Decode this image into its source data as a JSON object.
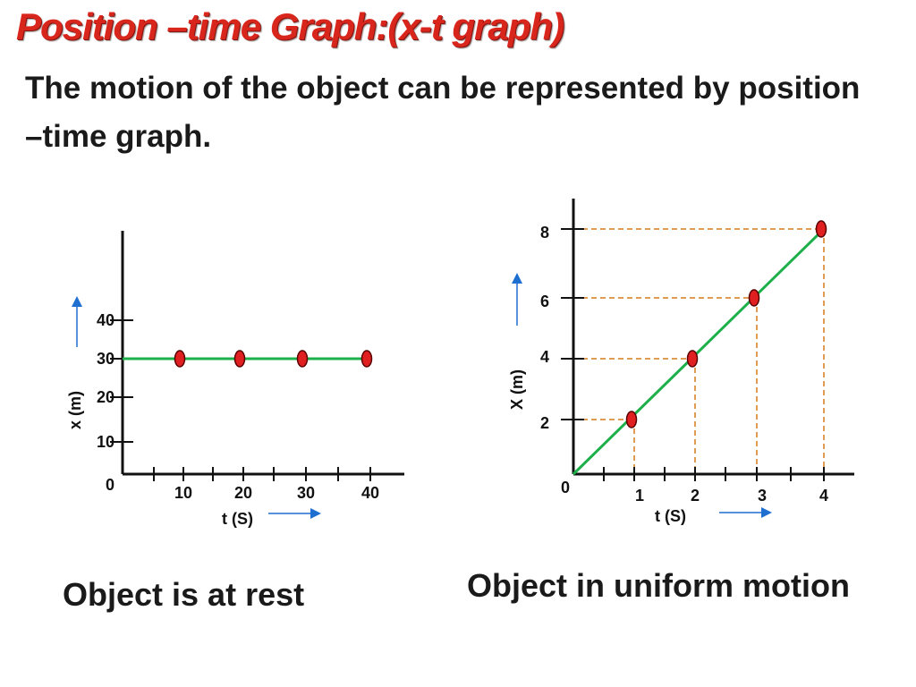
{
  "slide": {
    "title": "Position –time Graph:(x-t graph)",
    "intro": "The motion of the object can be represented by position –time graph."
  },
  "colors": {
    "title": "#d9261c",
    "line": "#1db04a",
    "point_fill": "#e02020",
    "point_stroke": "#5a0000",
    "axis_arrow": "#1f6fd1",
    "guide": "#d97a1a",
    "axis": "#111111"
  },
  "chart_data": [
    {
      "type": "line",
      "title": "",
      "caption": "Object is at rest",
      "xlabel": "t  (S)",
      "ylabel": "x    (m)",
      "x_ticks": [
        "10",
        "20",
        "30",
        "40"
      ],
      "y_ticks": [
        "10",
        "20",
        "30",
        "40"
      ],
      "origin_label": "0",
      "xlim": [
        0,
        45
      ],
      "ylim": [
        0,
        60
      ],
      "series": [
        {
          "points": [
            {
              "x": 10,
              "y": 30
            },
            {
              "x": 20,
              "y": 30
            },
            {
              "x": 30,
              "y": 30
            },
            {
              "x": 40,
              "y": 30
            }
          ],
          "line_from": {
            "x": 0,
            "y": 30
          },
          "line_to": {
            "x": 40,
            "y": 30
          }
        }
      ],
      "guides": false
    },
    {
      "type": "line",
      "title": "",
      "caption": "Object in uniform motion",
      "xlabel": "t     (S)",
      "ylabel": "X    (m)",
      "x_ticks": [
        "1",
        "2",
        "3",
        "4"
      ],
      "y_ticks": [
        "2",
        "4",
        "6",
        "8"
      ],
      "origin_label": "0",
      "xlim": [
        0,
        4.5
      ],
      "ylim": [
        0,
        9
      ],
      "series": [
        {
          "points": [
            {
              "x": 1,
              "y": 2
            },
            {
              "x": 2,
              "y": 4
            },
            {
              "x": 3,
              "y": 6
            },
            {
              "x": 4,
              "y": 8
            }
          ],
          "line_from": {
            "x": 0,
            "y": 0
          },
          "line_to": {
            "x": 4,
            "y": 8
          }
        }
      ],
      "guides": true
    }
  ]
}
